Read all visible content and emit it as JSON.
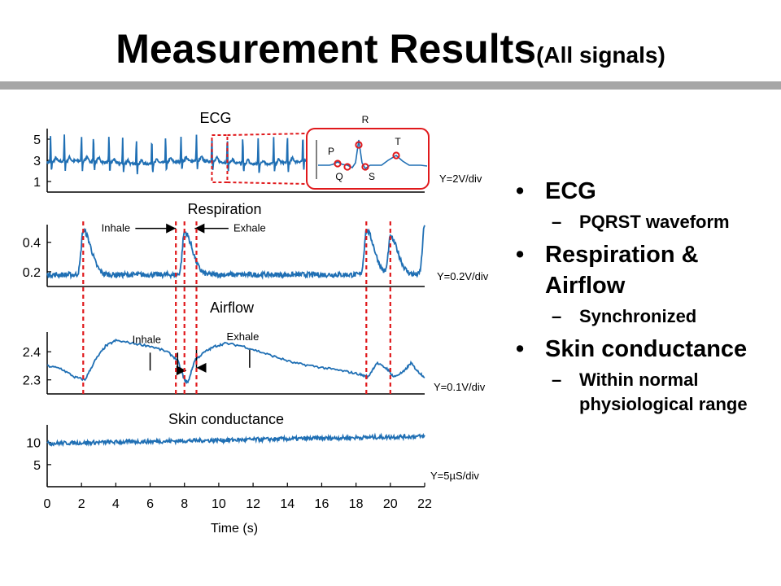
{
  "slide": {
    "title": "Measurement Results",
    "title_sub": "(All signals)",
    "bullets": [
      {
        "text": "ECG",
        "sub": [
          "PQRST waveform"
        ]
      },
      {
        "text": "Respiration & Airflow",
        "sub": [
          "Synchronized"
        ]
      },
      {
        "text": "Skin conductance",
        "sub": [
          "Within normal physiological range"
        ]
      }
    ]
  },
  "colors": {
    "signal": "#1f6fb4",
    "marker": "#e0191c",
    "rule": "#a6a6a6"
  },
  "chart_data": [
    {
      "type": "line",
      "title": "ECG",
      "scale": "Y=2V/div",
      "yticks": [
        5,
        3,
        1
      ],
      "ylim": [
        0,
        6
      ],
      "xlim": [
        0,
        22
      ],
      "series": [
        {
          "signal": "ecg",
          "baseline": 2.8,
          "r_peak": 5.3,
          "beats_x": [
            0.2,
            1.0,
            2.0,
            2.7,
            3.6,
            4.4,
            5.2,
            6.1,
            6.9,
            7.8,
            8.7,
            9.6,
            10.5,
            11.4,
            12.3,
            13.2,
            14.0,
            14.9,
            15.8,
            16.7,
            17.5,
            18.4,
            19.2,
            20.0,
            20.9,
            21.7
          ]
        }
      ],
      "inset": {
        "labels": [
          "P",
          "Q",
          "R",
          "S",
          "T"
        ],
        "zoom_x": [
          9.6,
          10.5
        ]
      }
    },
    {
      "type": "line",
      "title": "Respiration",
      "scale": "Y=0.2V/div",
      "yticks": [
        0.4,
        0.2
      ],
      "ylim": [
        0.1,
        0.52
      ],
      "xlim": [
        0,
        22
      ],
      "series": [
        {
          "signal": "respiration",
          "baseline": 0.18,
          "peaks": [
            {
              "x": 2.1,
              "y": 0.48
            },
            {
              "x": 8.0,
              "y": 0.47
            },
            {
              "x": 18.6,
              "y": 0.48
            },
            {
              "x": 20.0,
              "y": 0.43
            },
            {
              "x": 22.0,
              "y": 0.52
            }
          ]
        }
      ],
      "annotations": [
        {
          "text": "Inhale",
          "x": 4.0,
          "y": 0.45,
          "arrow_to_x": 7.5
        },
        {
          "text": "Exhale",
          "x": 11.8,
          "y": 0.45,
          "arrow_to_x": 8.6
        }
      ]
    },
    {
      "type": "line",
      "title": "Airflow",
      "scale": "Y=0.1V/div",
      "yticks": [
        2.4,
        2.3
      ],
      "ylim": [
        2.25,
        2.47
      ],
      "xlim": [
        0,
        22
      ],
      "series": [
        {
          "signal": "airflow",
          "points": [
            [
              0,
              2.35
            ],
            [
              0.8,
              2.34
            ],
            [
              1.6,
              2.31
            ],
            [
              2.2,
              2.3
            ],
            [
              2.8,
              2.37
            ],
            [
              3.4,
              2.42
            ],
            [
              4.0,
              2.44
            ],
            [
              5.0,
              2.43
            ],
            [
              6.0,
              2.42
            ],
            [
              7.0,
              2.4
            ],
            [
              7.6,
              2.37
            ],
            [
              8.0,
              2.3
            ],
            [
              8.2,
              2.29
            ],
            [
              8.6,
              2.37
            ],
            [
              9.2,
              2.4
            ],
            [
              9.8,
              2.42
            ],
            [
              10.4,
              2.43
            ],
            [
              11.4,
              2.42
            ],
            [
              12.4,
              2.4
            ],
            [
              13.4,
              2.38
            ],
            [
              14.4,
              2.36
            ],
            [
              15.4,
              2.35
            ],
            [
              16.4,
              2.34
            ],
            [
              17.4,
              2.33
            ],
            [
              18.2,
              2.32
            ],
            [
              18.7,
              2.31
            ],
            [
              19.2,
              2.36
            ],
            [
              19.8,
              2.34
            ],
            [
              20.2,
              2.31
            ],
            [
              20.8,
              2.33
            ],
            [
              21.2,
              2.36
            ],
            [
              21.6,
              2.33
            ],
            [
              22.0,
              2.31
            ]
          ]
        }
      ],
      "annotations": [
        {
          "text": "Inhale",
          "x": 5.8,
          "y": 2.42,
          "bracket_x": [
            6.0,
            7.6
          ],
          "arrow_to_x": 8.1
        },
        {
          "text": "Exhale",
          "x": 11.4,
          "y": 2.43,
          "bracket_x": [
            8.7,
            11.8
          ],
          "arrow_to_x": 8.7
        }
      ]
    },
    {
      "type": "line",
      "title": "Skin conductance",
      "scale": "Y=5µS/div",
      "yticks": [
        10,
        5
      ],
      "ylim": [
        0,
        14
      ],
      "xlim": [
        0,
        22
      ],
      "xlabel": "Time (s)",
      "xticks": [
        0,
        2,
        4,
        6,
        8,
        10,
        12,
        14,
        16,
        18,
        20,
        22
      ],
      "series": [
        {
          "signal": "skin",
          "start": 9.8,
          "end": 11.4
        }
      ]
    }
  ],
  "sync_markers_x": [
    2.1,
    7.5,
    8.0,
    8.7,
    18.6,
    20.0
  ]
}
